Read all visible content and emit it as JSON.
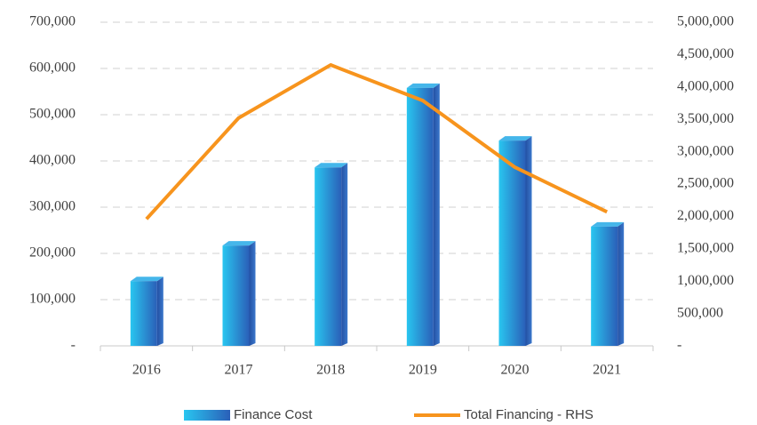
{
  "chart_data": {
    "type": "bar-line",
    "categories": [
      "2016",
      "2017",
      "2018",
      "2019",
      "2020",
      "2021"
    ],
    "series": [
      {
        "name": "Finance Cost",
        "type": "bar",
        "color": "#2f6fc4",
        "values": [
          140000,
          217000,
          386000,
          558000,
          444000,
          258000
        ]
      },
      {
        "name": "Total Financing - RHS",
        "type": "line",
        "axis": "y2",
        "color": "#f7941d",
        "values": [
          1960000,
          3520000,
          4340000,
          3790000,
          2760000,
          2070000
        ]
      }
    ],
    "ylim": [
      0,
      700000
    ],
    "yticks": [
      {
        "value": 0,
        "label": "-"
      },
      {
        "value": 100000,
        "label": "100,000"
      },
      {
        "value": 200000,
        "label": "200,000"
      },
      {
        "value": 300000,
        "label": "300,000"
      },
      {
        "value": 400000,
        "label": "400,000"
      },
      {
        "value": 500000,
        "label": "500,000"
      },
      {
        "value": 600000,
        "label": "600,000"
      },
      {
        "value": 700000,
        "label": "700,000"
      }
    ],
    "y2lim": [
      0,
      5000000
    ],
    "y2ticks": [
      {
        "value": 0,
        "label": "-"
      },
      {
        "value": 500000,
        "label": "500,000"
      },
      {
        "value": 1000000,
        "label": "1,000,000"
      },
      {
        "value": 1500000,
        "label": "1,500,000"
      },
      {
        "value": 2000000,
        "label": "2,000,000"
      },
      {
        "value": 2500000,
        "label": "2,500,000"
      },
      {
        "value": 3000000,
        "label": "3,000,000"
      },
      {
        "value": 3500000,
        "label": "3,500,000"
      },
      {
        "value": 4000000,
        "label": "4,000,000"
      },
      {
        "value": 4500000,
        "label": "4,500,000"
      },
      {
        "value": 5000000,
        "label": "5,000,000"
      }
    ],
    "grid": true,
    "legend": "bottom"
  }
}
